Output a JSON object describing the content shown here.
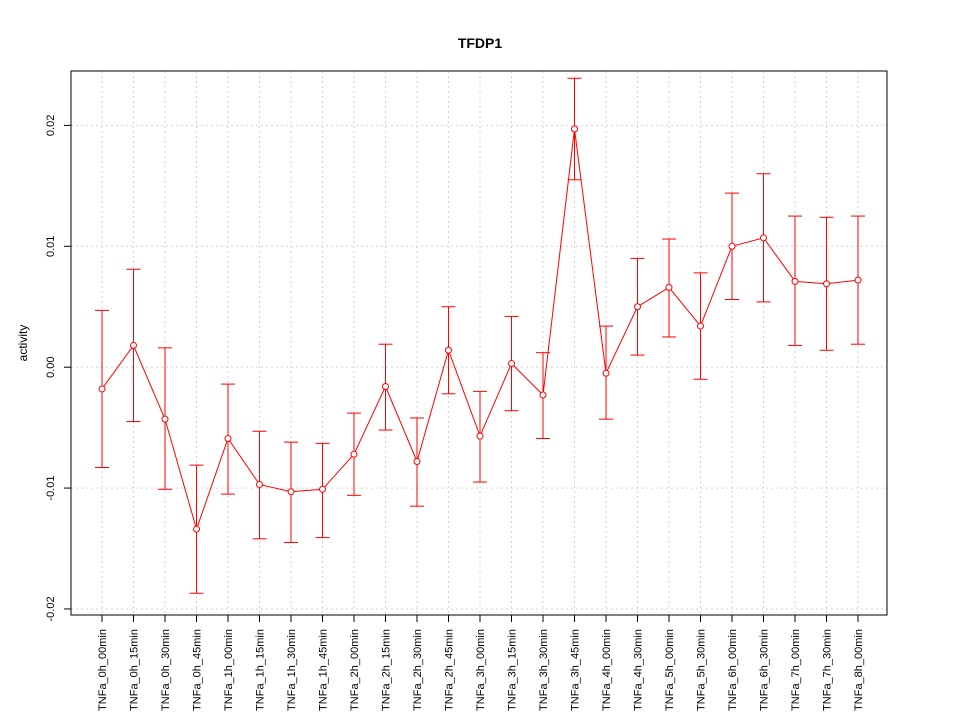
{
  "chart_data": {
    "type": "line",
    "title": "TFDP1",
    "xlabel": "",
    "ylabel": "activity",
    "ylim": [
      -0.0205,
      0.0245
    ],
    "yticks": [
      -0.02,
      -0.01,
      0.0,
      0.01,
      0.02
    ],
    "ytick_labels": [
      "-0.02",
      "-0.01",
      "0.00",
      "0.01",
      "0.02"
    ],
    "grid": true,
    "line_color": "#ff0000",
    "grid_color": "#d3d3d3",
    "categories": [
      "TNFa_0h_00min",
      "TNFa_0h_15min",
      "TNFa_0h_30min",
      "TNFa_0h_45min",
      "TNFa_1h_00min",
      "TNFa_1h_15min",
      "TNFa_1h_30min",
      "TNFa_1h_45min",
      "TNFa_2h_00min",
      "TNFa_2h_15min",
      "TNFa_2h_30min",
      "TNFa_2h_45min",
      "TNFa_3h_00min",
      "TNFa_3h_15min",
      "TNFa_3h_30min",
      "TNFa_3h_45min",
      "TNFa_4h_00min",
      "TNFa_4h_30min",
      "TNFa_5h_00min",
      "TNFa_5h_30min",
      "TNFa_6h_00min",
      "TNFa_6h_30min",
      "TNFa_7h_00min",
      "TNFa_7h_30min",
      "TNFa_8h_00min"
    ],
    "values": [
      -0.0018,
      0.0018,
      -0.0043,
      -0.0134,
      -0.0059,
      -0.0097,
      -0.0103,
      -0.0101,
      -0.0072,
      -0.0016,
      -0.0078,
      0.0014,
      -0.0057,
      0.0003,
      -0.0023,
      0.0197,
      -0.0005,
      0.005,
      0.0066,
      0.0034,
      0.01,
      0.0107,
      0.0071,
      0.0069,
      0.0072
    ],
    "error_upper": [
      0.0047,
      0.0081,
      0.0016,
      -0.0081,
      -0.0014,
      -0.0053,
      -0.0062,
      -0.0063,
      -0.0038,
      0.0019,
      -0.0042,
      0.005,
      -0.002,
      0.0042,
      0.0012,
      0.0239,
      0.0034,
      0.009,
      0.0106,
      0.0078,
      0.0144,
      0.016,
      0.0125,
      0.0124,
      0.0125
    ],
    "error_lower": [
      -0.0083,
      -0.0045,
      -0.0101,
      -0.0187,
      -0.0105,
      -0.0142,
      -0.0145,
      -0.0141,
      -0.0106,
      -0.0052,
      -0.0115,
      -0.0022,
      -0.0095,
      -0.0036,
      -0.0059,
      0.0155,
      -0.0043,
      0.001,
      0.0025,
      -0.001,
      0.0056,
      0.0054,
      0.0018,
      0.0014,
      0.0019
    ]
  }
}
